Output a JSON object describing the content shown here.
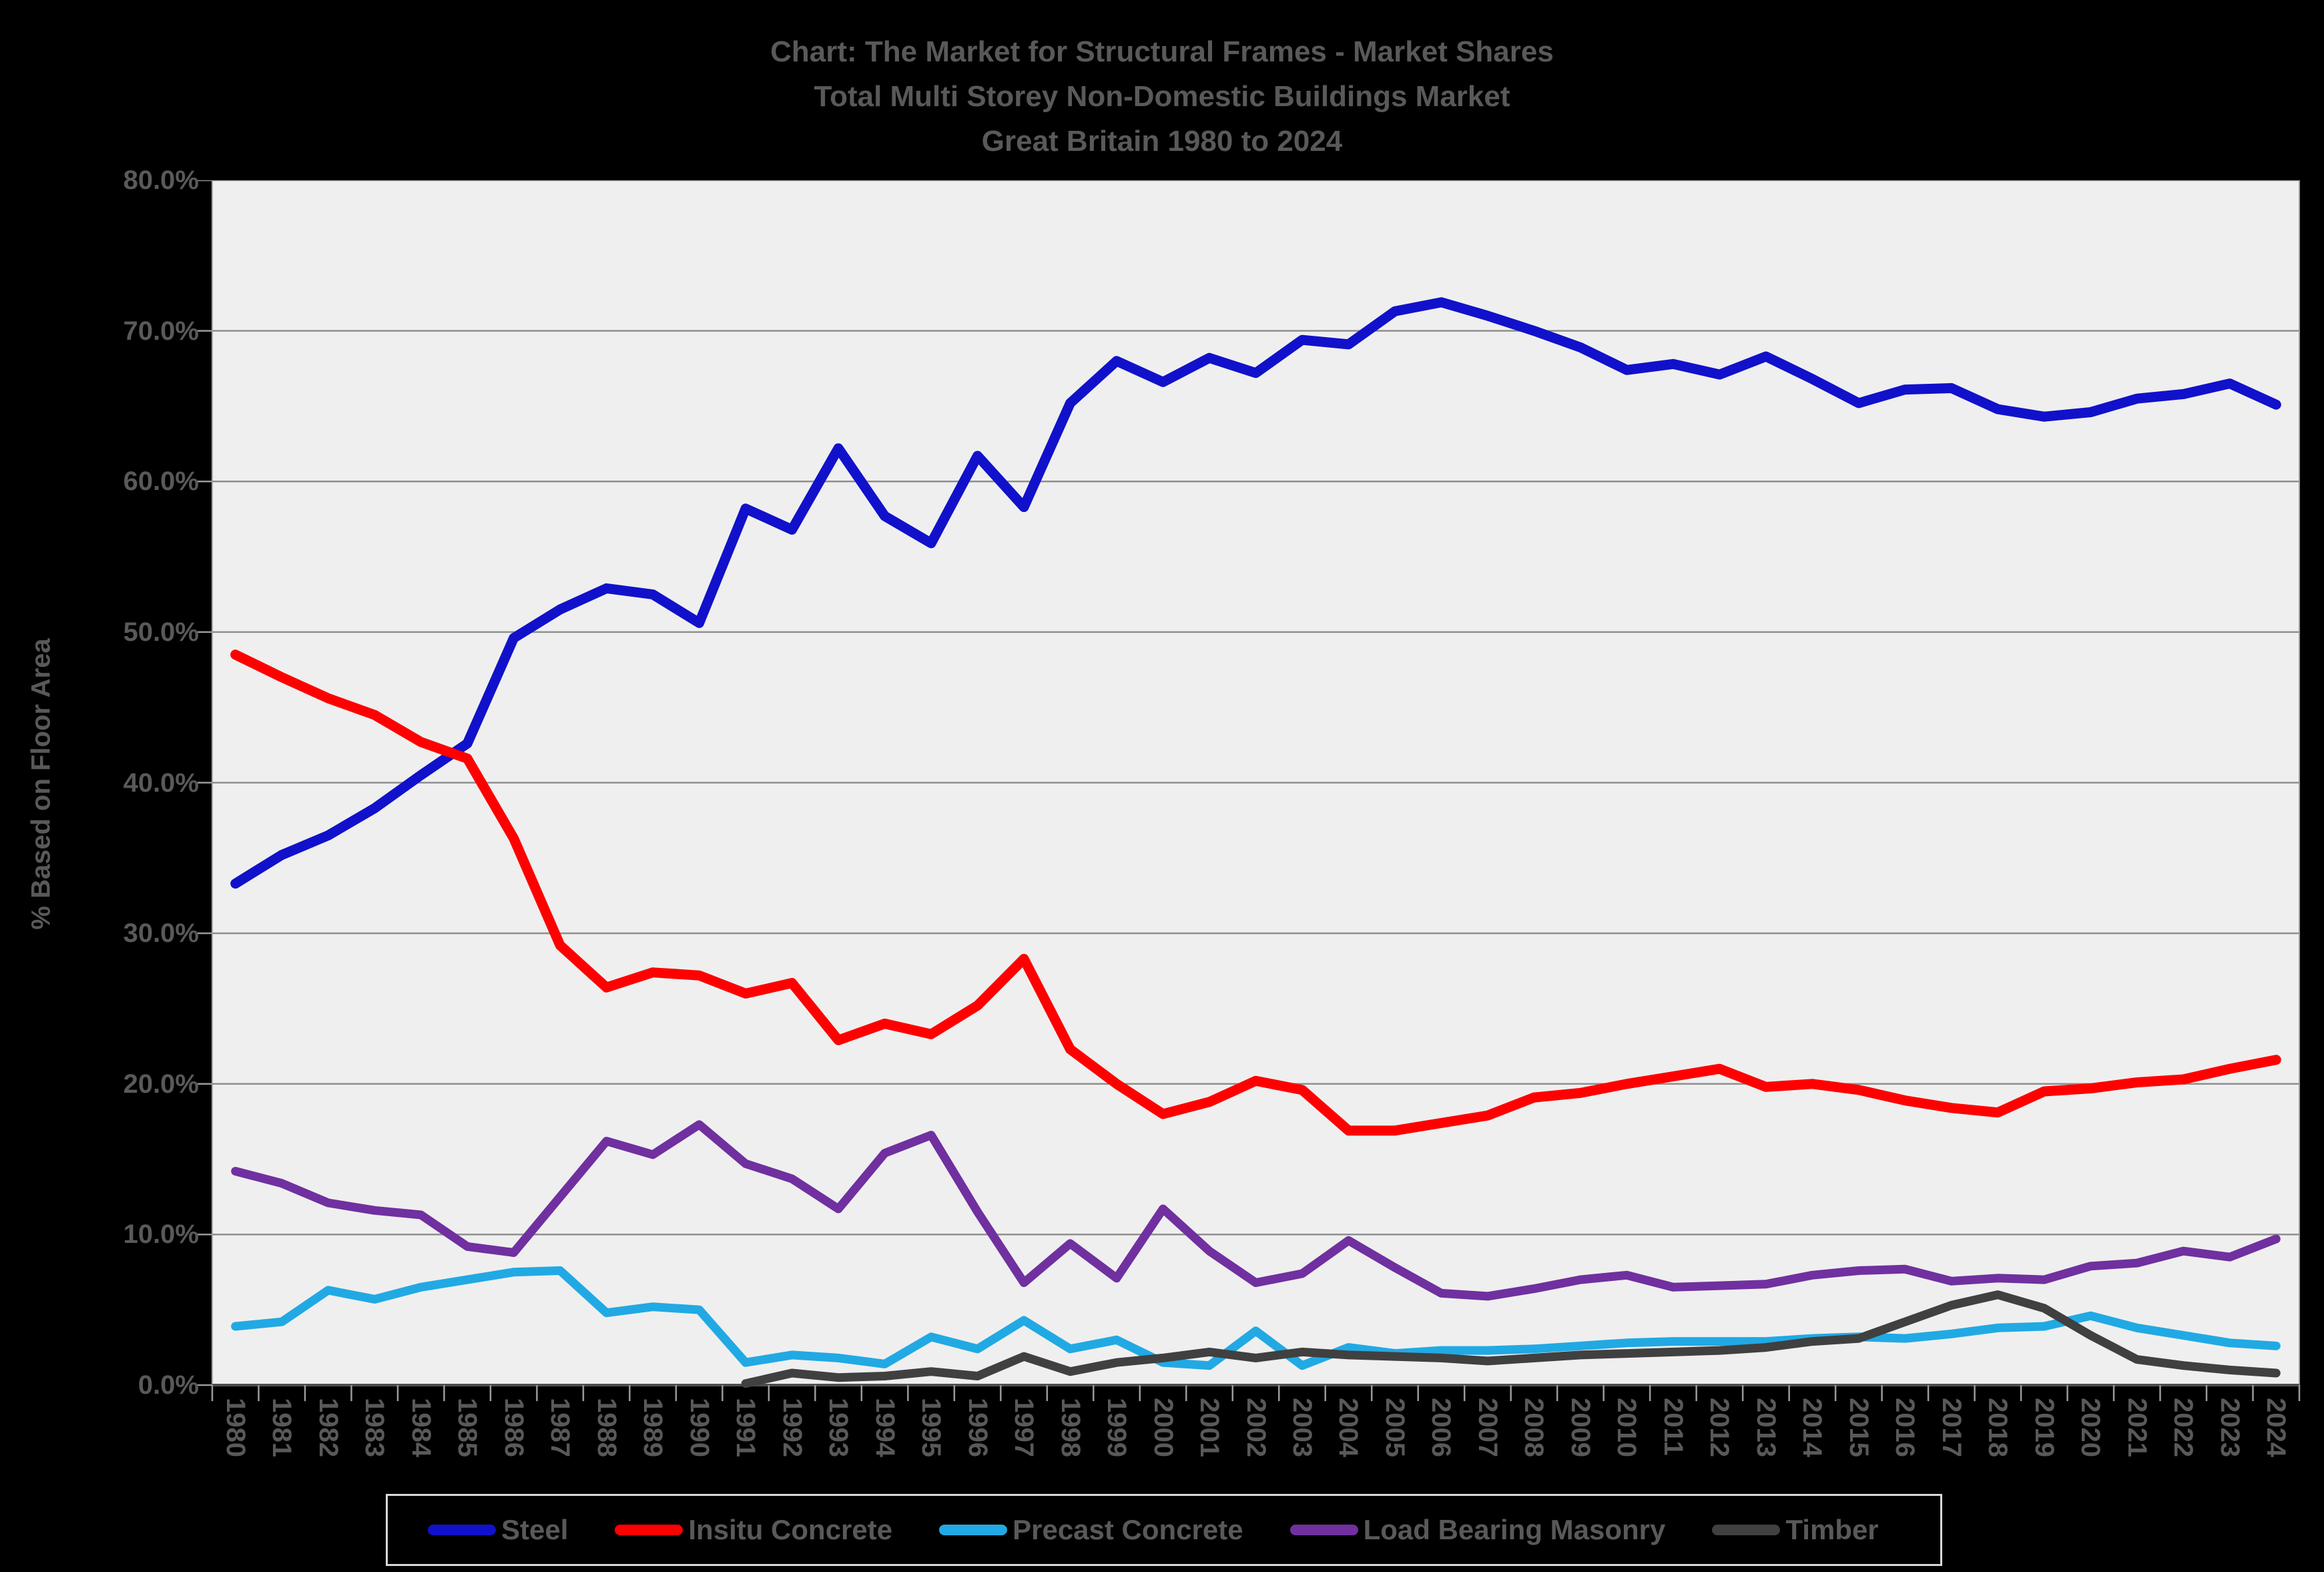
{
  "title": {
    "line1": "Chart: The Market for Structural Frames - Market Shares",
    "line2": "Total Multi Storey Non-Domestic Buildings Market",
    "line3": "Great Britain 1980 to 2024"
  },
  "y_axis": {
    "title": "% Based on Floor Area",
    "tick_labels": [
      "80.0%",
      "70.0%",
      "60.0%",
      "50.0%",
      "40.0%",
      "30.0%",
      "20.0%",
      "10.0%",
      "0.0%"
    ]
  },
  "legend": [
    {
      "label": "Steel",
      "color": "#1111CB"
    },
    {
      "label": "Insitu Concrete",
      "color": "#FF0000"
    },
    {
      "label": "Precast Concrete",
      "color": "#21A9E4"
    },
    {
      "label": "Load Bearing Masonry",
      "color": "#7030A0"
    },
    {
      "label": "Timber",
      "color": "#404040"
    }
  ],
  "colors": {
    "background": "#000000",
    "plot_background": "#EFEFEF",
    "gridline": "#8F8F8F",
    "axis_line": "#4D4D4D",
    "tick": "#9A9A9A",
    "text": "#595959"
  },
  "chart_data": {
    "type": "line",
    "title": "Chart: The Market for Structural Frames - Market Shares",
    "subtitle": "Total Multi Storey Non-Domestic Buildings Market, Great Britain 1980 to 2024",
    "ylabel": "% Based on Floor Area",
    "ylim": [
      0,
      80
    ],
    "y_tick_step": 10,
    "grid": true,
    "legend_position": "bottom",
    "x": [
      1980,
      1981,
      1982,
      1983,
      1984,
      1985,
      1986,
      1987,
      1988,
      1989,
      1990,
      1991,
      1992,
      1993,
      1994,
      1995,
      1996,
      1997,
      1998,
      1999,
      2000,
      2001,
      2002,
      2003,
      2004,
      2005,
      2006,
      2007,
      2008,
      2009,
      2010,
      2011,
      2012,
      2013,
      2014,
      2015,
      2016,
      2017,
      2018,
      2019,
      2020,
      2021,
      2022,
      2023,
      2024
    ],
    "series": [
      {
        "name": "Steel",
        "color": "#1111CB",
        "values": [
          33.3,
          35.2,
          36.5,
          38.3,
          40.5,
          42.6,
          49.6,
          51.5,
          52.9,
          52.5,
          50.6,
          58.2,
          56.8,
          62.2,
          57.7,
          55.9,
          61.7,
          58.3,
          65.2,
          68.0,
          66.6,
          68.2,
          67.2,
          69.4,
          69.1,
          71.3,
          71.9,
          71.0,
          70.0,
          68.9,
          67.4,
          67.8,
          67.1,
          68.3,
          66.8,
          65.2,
          66.1,
          66.2,
          64.8,
          64.3,
          64.6,
          65.5,
          65.8,
          66.5,
          65.1
        ]
      },
      {
        "name": "Insitu Concrete",
        "color": "#FF0000",
        "values": [
          48.5,
          47.0,
          45.6,
          44.5,
          42.7,
          41.6,
          36.3,
          29.2,
          26.4,
          27.4,
          27.2,
          26.0,
          26.7,
          22.9,
          24.0,
          23.3,
          25.2,
          28.3,
          22.3,
          20.0,
          18.0,
          18.8,
          20.2,
          19.6,
          16.9,
          16.9,
          17.4,
          17.9,
          19.1,
          19.4,
          20.0,
          20.5,
          21.0,
          19.8,
          20.0,
          19.6,
          18.9,
          18.4,
          18.1,
          19.5,
          19.7,
          20.1,
          20.3,
          21.0,
          21.6
        ]
      },
      {
        "name": "Precast Concrete",
        "color": "#21A9E4",
        "values": [
          3.9,
          4.2,
          6.3,
          5.7,
          6.5,
          7.0,
          7.5,
          7.6,
          4.8,
          5.2,
          5.0,
          1.5,
          2.0,
          1.8,
          1.4,
          3.2,
          2.4,
          4.3,
          2.4,
          3.0,
          1.5,
          1.3,
          3.6,
          1.3,
          2.5,
          2.1,
          2.3,
          2.3,
          2.4,
          2.6,
          2.8,
          2.9,
          2.9,
          2.9,
          3.1,
          3.2,
          3.1,
          3.4,
          3.8,
          3.9,
          4.6,
          3.8,
          3.3,
          2.8,
          2.6
        ]
      },
      {
        "name": "Load Bearing Masonry",
        "color": "#7030A0",
        "values": [
          14.2,
          13.4,
          12.1,
          11.6,
          11.3,
          9.2,
          8.8,
          12.5,
          16.2,
          15.3,
          17.3,
          14.7,
          13.7,
          11.7,
          15.4,
          16.6,
          11.5,
          6.8,
          9.4,
          7.1,
          11.7,
          8.9,
          6.8,
          7.4,
          9.6,
          7.8,
          6.1,
          5.9,
          6.4,
          7.0,
          7.3,
          6.5,
          6.6,
          6.7,
          7.3,
          7.6,
          7.7,
          6.9,
          7.1,
          7.0,
          7.9,
          8.1,
          8.9,
          8.5,
          9.7
        ]
      },
      {
        "name": "Timber",
        "color": "#404040",
        "values": [
          null,
          null,
          null,
          null,
          null,
          null,
          null,
          null,
          null,
          null,
          null,
          0.1,
          0.8,
          0.5,
          0.6,
          0.9,
          0.6,
          1.9,
          0.9,
          1.5,
          1.8,
          2.2,
          1.8,
          2.2,
          2.0,
          1.9,
          1.8,
          1.6,
          1.8,
          2.0,
          2.1,
          2.2,
          2.3,
          2.5,
          2.9,
          3.1,
          4.2,
          5.3,
          6.0,
          5.1,
          3.3,
          1.7,
          1.3,
          1.0,
          0.8
        ]
      }
    ]
  }
}
